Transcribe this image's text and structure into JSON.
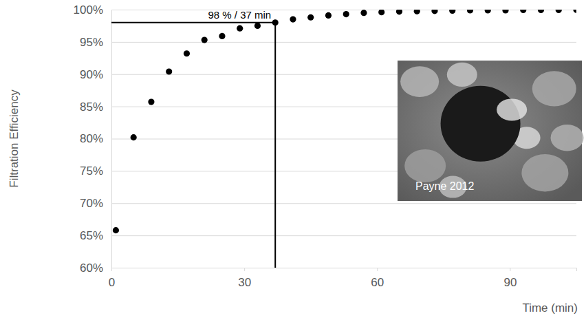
{
  "chart_data": {
    "type": "scatter",
    "x": [
      1,
      5,
      9,
      13,
      17,
      21,
      25,
      29,
      33,
      37,
      41,
      45,
      49,
      53,
      57,
      61,
      65,
      69,
      73,
      77,
      81,
      85,
      89,
      93,
      97,
      101,
      105
    ],
    "values": [
      65.8,
      80.2,
      85.7,
      90.4,
      93.2,
      95.3,
      95.9,
      97.1,
      97.5,
      98.0,
      98.5,
      98.8,
      99.1,
      99.3,
      99.5,
      99.6,
      99.7,
      99.75,
      99.8,
      99.85,
      99.9,
      99.9,
      99.9,
      99.95,
      99.95,
      99.95,
      99.97
    ],
    "color": "#000000",
    "marker": "circle",
    "xlim": [
      0,
      105
    ],
    "xticks": [
      0,
      30,
      60,
      90
    ],
    "ylim": [
      60,
      100
    ],
    "yticks": [
      {
        "value": 60,
        "label": "60%"
      },
      {
        "value": 65,
        "label": "65%"
      },
      {
        "value": 70,
        "label": "70%"
      },
      {
        "value": 75,
        "label": "75%"
      },
      {
        "value": 80,
        "label": "80%"
      },
      {
        "value": 85,
        "label": "85%"
      },
      {
        "value": 90,
        "label": "90%"
      },
      {
        "value": 95,
        "label": "95%"
      },
      {
        "value": 100,
        "label": "100%"
      }
    ],
    "grid": true,
    "x_label": "Time (min)",
    "y_label": "Filtration Efficiency",
    "annotation": {
      "text": "98 % / 37 min",
      "x": 37,
      "y": 98
    },
    "inset_label": "Payne 2012"
  }
}
